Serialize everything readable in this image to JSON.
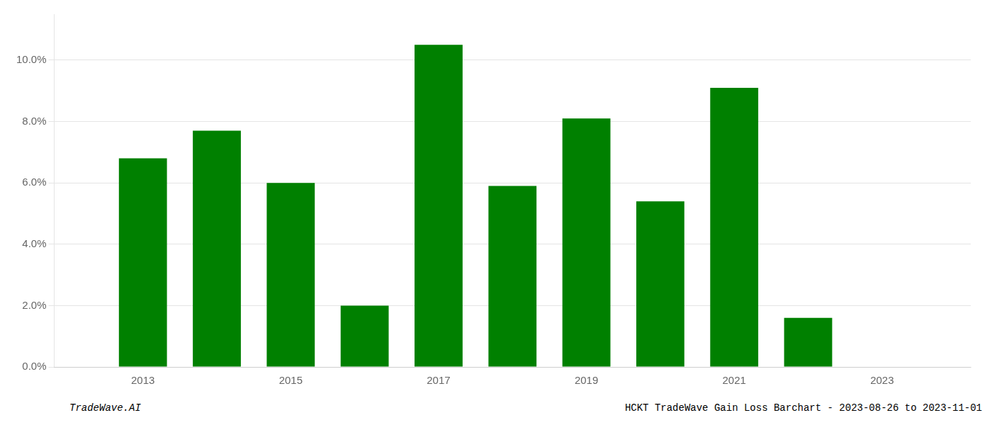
{
  "chart_data": {
    "type": "bar",
    "x": [
      2013,
      2014,
      2015,
      2016,
      2017,
      2018,
      2019,
      2020,
      2021,
      2022,
      2023
    ],
    "values": [
      0.068,
      0.077,
      0.06,
      0.02,
      0.105,
      0.059,
      0.081,
      0.054,
      0.091,
      0.016,
      0.0
    ],
    "color": "#008000",
    "xlim": [
      2011.8,
      2024.2
    ],
    "xticks": [
      2013,
      2015,
      2017,
      2019,
      2021,
      2023
    ],
    "ylim": [
      0,
      0.115
    ],
    "yticks": [
      {
        "value": 0.0,
        "label": "0.0%"
      },
      {
        "value": 0.02,
        "label": "2.0%"
      },
      {
        "value": 0.04,
        "label": "4.0%"
      },
      {
        "value": 0.06,
        "label": "6.0%"
      },
      {
        "value": 0.08,
        "label": "8.0%"
      },
      {
        "value": 0.1,
        "label": "10.0%"
      }
    ],
    "grid": true,
    "annotations": [
      "TradeWave.AI",
      "HCKT TradeWave Gain Loss Barchart - 2023-08-26 to 2023-11-01"
    ]
  }
}
